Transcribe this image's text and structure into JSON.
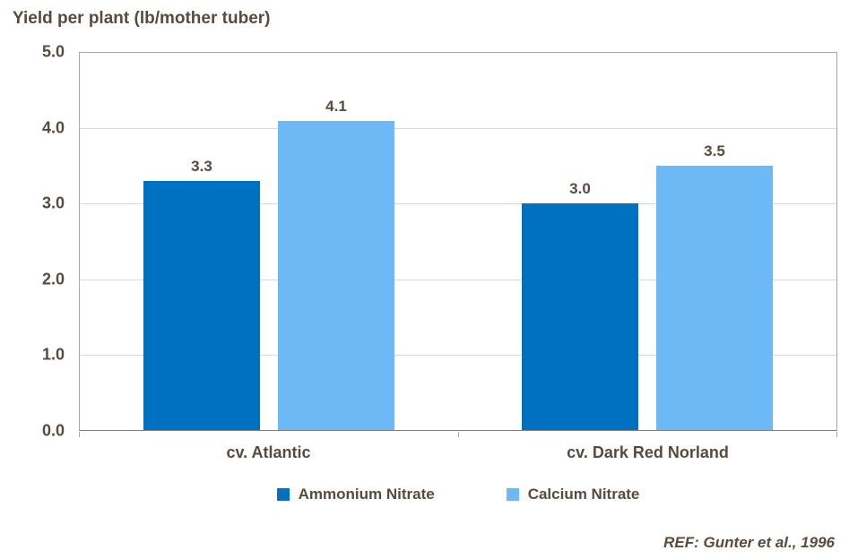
{
  "title": "Yield per plant (lb/mother tuber)",
  "ref_note": "REF: Gunter et al., 1996",
  "colors": {
    "text": "#594A3E",
    "grid": "#D9D9D9",
    "plot_border": "#A6A6A6",
    "axis": "#7F7F7F",
    "series_ammonium": "#0070C0",
    "series_calcium": "#6CB9F5"
  },
  "chart_data": {
    "type": "bar",
    "title": "Yield per plant (lb/mother tuber)",
    "xlabel": "",
    "ylabel": "Yield per plant (lb/mother tuber)",
    "categories": [
      "cv. Atlantic",
      "cv. Dark Red Norland"
    ],
    "series": [
      {
        "name": "Ammonium Nitrate",
        "color": "#0070C0",
        "values": [
          3.3,
          3.0
        ],
        "labels": [
          "3.3",
          "3.0"
        ]
      },
      {
        "name": "Calcium Nitrate",
        "color": "#6CB9F5",
        "values": [
          4.1,
          3.5
        ],
        "labels": [
          "4.1",
          "3.5"
        ]
      }
    ],
    "ylim": [
      0,
      5
    ],
    "yticks": [
      "0.0",
      "1.0",
      "2.0",
      "3.0",
      "4.0",
      "5.0"
    ],
    "grid": "horizontal",
    "legend_position": "bottom",
    "annotation": "REF: Gunter et al., 1996"
  }
}
